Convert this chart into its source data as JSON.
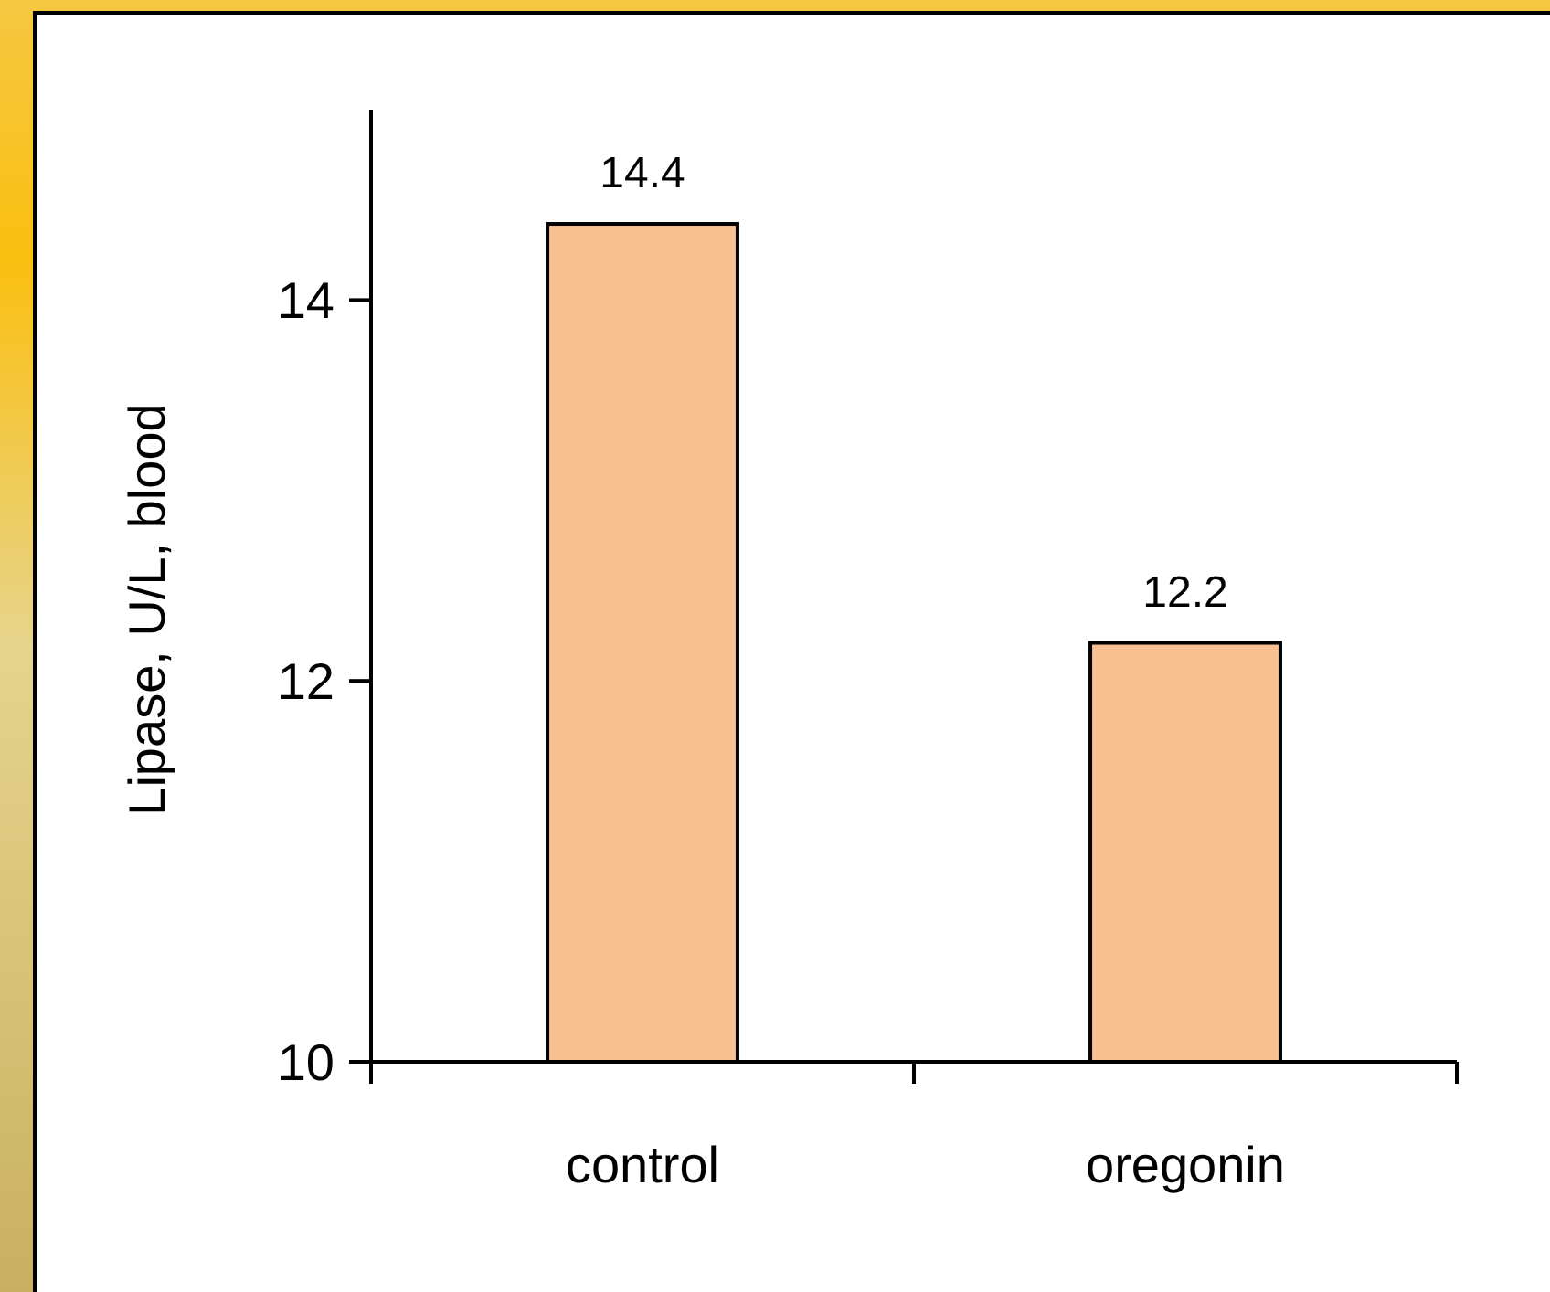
{
  "chart_data": {
    "type": "bar",
    "ylabel": "Lipase,  U/L, blood",
    "categories": [
      "control",
      "oregonin"
    ],
    "values": [
      14.4,
      12.2
    ],
    "color": "#f8c090",
    "ylim": [
      10,
      15
    ],
    "yticks": [
      10,
      12,
      14
    ],
    "data_labels": true
  }
}
